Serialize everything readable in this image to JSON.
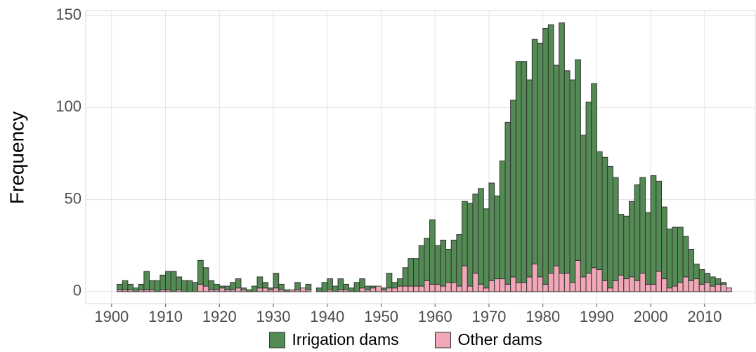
{
  "chart_data": {
    "type": "histogram",
    "y_label": "Frequency",
    "bins": [
      1901,
      1902,
      1903,
      1904,
      1905,
      1906,
      1907,
      1908,
      1909,
      1910,
      1911,
      1912,
      1913,
      1914,
      1915,
      1916,
      1917,
      1918,
      1919,
      1920,
      1921,
      1922,
      1923,
      1924,
      1925,
      1926,
      1927,
      1928,
      1929,
      1930,
      1931,
      1932,
      1933,
      1934,
      1935,
      1936,
      1937,
      1938,
      1939,
      1940,
      1941,
      1942,
      1943,
      1944,
      1945,
      1946,
      1947,
      1948,
      1949,
      1950,
      1951,
      1952,
      1953,
      1954,
      1955,
      1956,
      1957,
      1958,
      1959,
      1960,
      1961,
      1962,
      1963,
      1964,
      1965,
      1966,
      1967,
      1968,
      1969,
      1970,
      1971,
      1972,
      1973,
      1974,
      1975,
      1976,
      1977,
      1978,
      1979,
      1980,
      1981,
      1982,
      1983,
      1984,
      1985,
      1986,
      1987,
      1988,
      1989,
      1990,
      1991,
      1992,
      1993,
      1994,
      1995,
      1996,
      1997,
      1998,
      1999,
      2000,
      2001,
      2002,
      2003,
      2004,
      2005,
      2006,
      2007,
      2008,
      2009,
      2010,
      2011,
      2012,
      2013,
      2014,
      2015
    ],
    "series": [
      {
        "name": "Irrigation dams",
        "color": "#548b54",
        "values": [
          3,
          5,
          3,
          2,
          3,
          10,
          5,
          6,
          8,
          10,
          11,
          7,
          6,
          6,
          5,
          13,
          10,
          5,
          3,
          1,
          2,
          4,
          5,
          1,
          1,
          3,
          6,
          3,
          1,
          8,
          3,
          1,
          0,
          4,
          0,
          3,
          0,
          2,
          5,
          6,
          3,
          6,
          3,
          2,
          5,
          5,
          2,
          1,
          0,
          1,
          8,
          3,
          4,
          10,
          15,
          15,
          22,
          23,
          35,
          21,
          25,
          18,
          23,
          28,
          35,
          45,
          43,
          52,
          43,
          53,
          45,
          64,
          88,
          96,
          120,
          120,
          107,
          122,
          127,
          139,
          135,
          109,
          136,
          110,
          110,
          109,
          77,
          93,
          100,
          64,
          67,
          66,
          56,
          33,
          34,
          41,
          52,
          52,
          39,
          59,
          49,
          39,
          32,
          32,
          30,
          22,
          17,
          8,
          8,
          5,
          5,
          3,
          1,
          0
        ]
      },
      {
        "name": "Other dams",
        "color": "#f1a7b7",
        "values": [
          1,
          1,
          1,
          0,
          1,
          1,
          1,
          0,
          1,
          1,
          0,
          1,
          0,
          0,
          0,
          4,
          3,
          1,
          1,
          2,
          1,
          1,
          2,
          1,
          0,
          0,
          2,
          2,
          1,
          2,
          1,
          0,
          1,
          1,
          2,
          1,
          0,
          0,
          0,
          1,
          0,
          1,
          1,
          0,
          0,
          2,
          1,
          2,
          3,
          1,
          2,
          2,
          3,
          3,
          3,
          3,
          3,
          6,
          4,
          4,
          3,
          5,
          5,
          3,
          14,
          3,
          10,
          4,
          2,
          6,
          7,
          7,
          4,
          8,
          5,
          5,
          8,
          15,
          8,
          4,
          10,
          14,
          10,
          10,
          5,
          17,
          8,
          10,
          13,
          12,
          6,
          2,
          6,
          9,
          7,
          8,
          6,
          10,
          4,
          4,
          11,
          7,
          2,
          3,
          5,
          8,
          6,
          7,
          4,
          5,
          3,
          4,
          4,
          2
        ]
      }
    ],
    "stacked": true,
    "xlim": [
      1895.2,
      2019.4
    ],
    "ylim": [
      -6.5,
      152.7
    ],
    "xticks": [
      1900,
      1910,
      1920,
      1930,
      1940,
      1950,
      1960,
      1970,
      1980,
      1990,
      2000,
      2010
    ],
    "yticks": [
      0,
      50,
      100,
      150
    ],
    "grid": true,
    "legend": "bottom"
  }
}
